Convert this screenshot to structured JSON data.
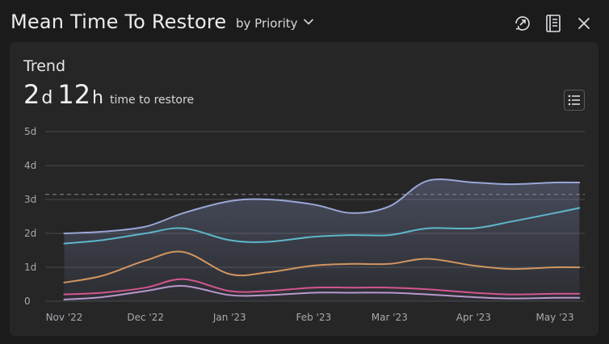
{
  "header": {
    "title": "Mean Time To Restore",
    "group_by": "by Priority",
    "icons": [
      "restore-history-icon",
      "book-icon",
      "close-icon"
    ]
  },
  "card": {
    "label": "Trend",
    "value_days": "2",
    "value_days_unit": "d",
    "value_hours": "12",
    "value_hours_unit": "h",
    "value_suffix": "time to restore"
  },
  "chart_data": {
    "type": "line",
    "x": [
      "2022-11-01",
      "2022-11-15",
      "2022-12-01",
      "2022-12-15",
      "2023-01-01",
      "2023-01-15",
      "2023-02-01",
      "2023-02-15",
      "2023-03-01",
      "2023-03-15",
      "2023-04-01",
      "2023-04-15",
      "2023-05-01",
      "2023-05-10"
    ],
    "xticks": [
      "Nov '22",
      "Dec '22",
      "Jan '23",
      "Feb '23",
      "Mar '23",
      "Apr '23",
      "May '23"
    ],
    "yticks": [
      "0",
      "1d",
      "2d",
      "3d",
      "4d",
      "5d"
    ],
    "ylim": [
      0,
      5
    ],
    "reference_line": 3.15,
    "grid": true,
    "series": [
      {
        "color": "#9aa6d6",
        "values": [
          2.0,
          2.05,
          2.2,
          2.6,
          2.95,
          3.0,
          2.85,
          2.6,
          2.8,
          3.55,
          3.5,
          3.45,
          3.5,
          3.5
        ]
      },
      {
        "color": "#5db7c9",
        "values": [
          1.7,
          1.8,
          2.0,
          2.15,
          1.8,
          1.75,
          1.9,
          1.95,
          1.95,
          2.15,
          2.15,
          2.35,
          2.6,
          2.75
        ]
      },
      {
        "color": "#d2955f",
        "values": [
          0.55,
          0.75,
          1.2,
          1.45,
          0.8,
          0.85,
          1.05,
          1.1,
          1.1,
          1.25,
          1.05,
          0.95,
          1.0,
          1.0
        ]
      },
      {
        "color": "#d4558f",
        "values": [
          0.2,
          0.25,
          0.4,
          0.65,
          0.3,
          0.3,
          0.4,
          0.4,
          0.4,
          0.35,
          0.25,
          0.2,
          0.22,
          0.22
        ]
      },
      {
        "color": "#b898cc",
        "values": [
          0.05,
          0.12,
          0.3,
          0.45,
          0.18,
          0.18,
          0.25,
          0.25,
          0.25,
          0.2,
          0.12,
          0.08,
          0.1,
          0.1
        ]
      }
    ]
  }
}
